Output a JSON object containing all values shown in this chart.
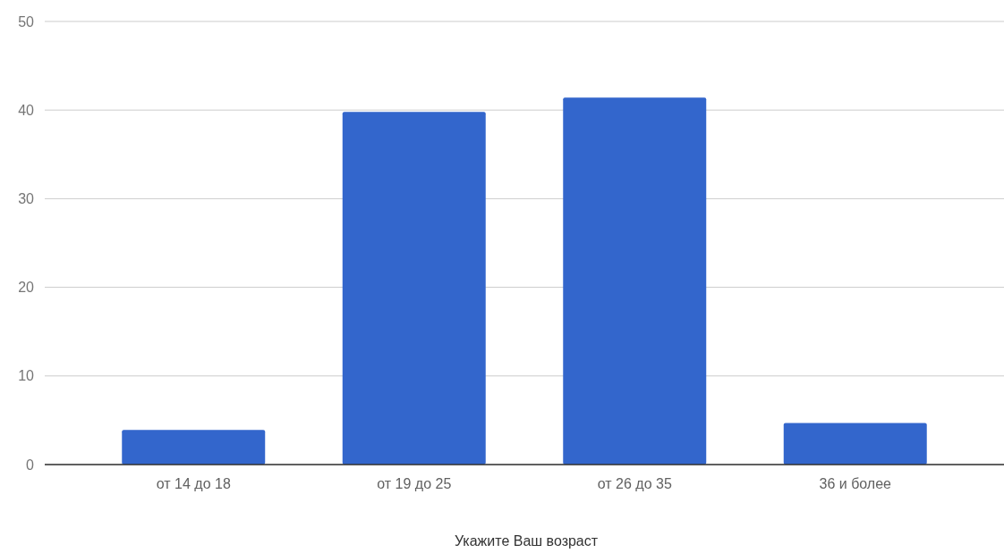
{
  "chart_data": {
    "type": "bar",
    "xlabel": "Укажите Ваш возраст",
    "categories": [
      "от 14 до 18",
      "от 19 до 25",
      "от 26 до 35",
      "36 и более"
    ],
    "values": [
      3.9,
      39.8,
      41.4,
      4.7
    ],
    "color": "#3366cc",
    "ylim": [
      0,
      50
    ],
    "yticks": [
      0,
      10,
      20,
      30,
      40,
      50
    ],
    "grid": "y"
  }
}
